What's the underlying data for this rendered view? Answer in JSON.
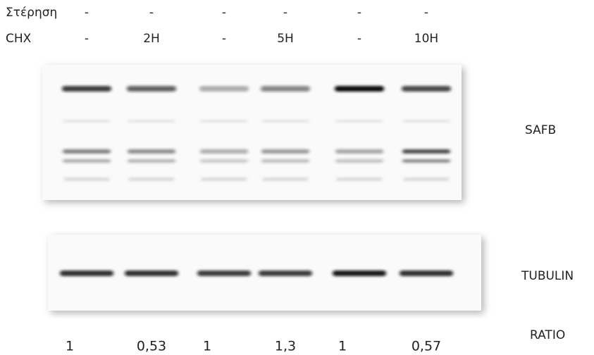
{
  "conditions": {
    "rows": [
      {
        "label": "Στέρηση",
        "values": [
          "-",
          "-",
          "-",
          "-",
          "-",
          "-"
        ]
      },
      {
        "label": "CHX",
        "values": [
          "-",
          "2H",
          "-",
          "5H",
          "-",
          "10H"
        ]
      }
    ]
  },
  "blots": [
    {
      "label": "SAFB"
    },
    {
      "label": "TUBULIN"
    }
  ],
  "ratio": {
    "label": "RATIO",
    "values": [
      "1",
      "0,53",
      "1",
      "1,3",
      "1",
      "0,57"
    ]
  }
}
